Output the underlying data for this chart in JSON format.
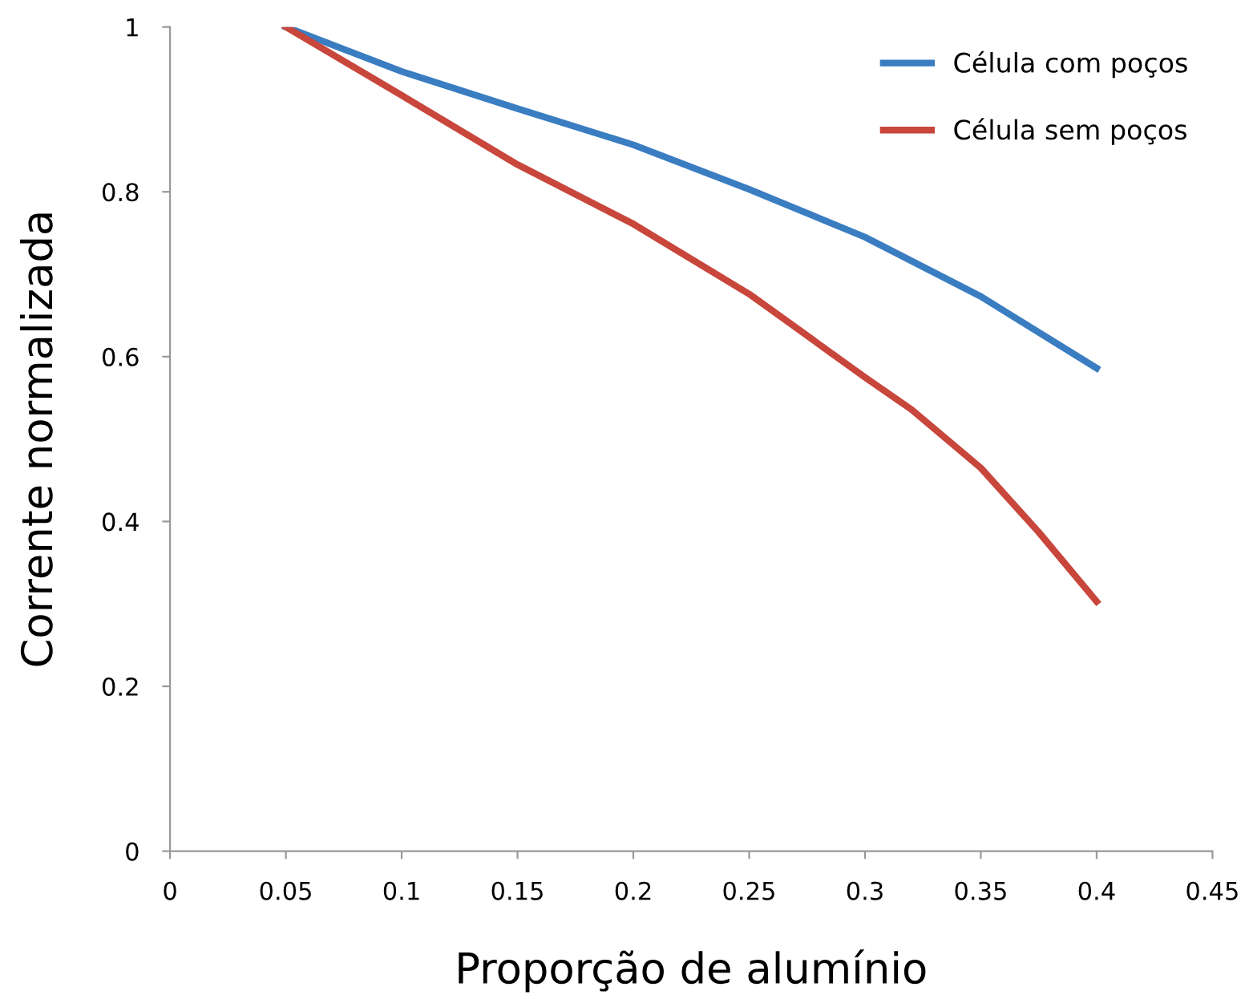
{
  "chart_data": {
    "type": "line",
    "xlabel": "Proporção de alumínio",
    "ylabel": "Corrente normalizada",
    "xlim": [
      0,
      0.45
    ],
    "xticks": [
      0,
      0.05,
      0.1,
      0.15,
      0.2,
      0.25,
      0.3,
      0.35,
      0.4,
      0.45
    ],
    "ylim": [
      0,
      1
    ],
    "yticks": [
      0,
      0.2,
      0.4,
      0.6,
      0.8,
      1
    ],
    "grid": false,
    "legend": "top right",
    "marker": "none",
    "line_style": "solid",
    "series": [
      {
        "name": "Célula com poços",
        "color": "#3a7dc1",
        "x": [
          0.05,
          0.1,
          0.15,
          0.2,
          0.25,
          0.3,
          0.35,
          0.4
        ],
        "values": [
          1,
          0.946,
          0.901,
          0.857,
          0.803,
          0.745,
          0.673,
          0.586
        ]
      },
      {
        "name": "Célula sem poços",
        "color": "#c8463b",
        "x": [
          0.05,
          0.1,
          0.15,
          0.2,
          0.25,
          0.3,
          0.32,
          0.35,
          0.375,
          0.4
        ],
        "values": [
          1,
          0.917,
          0.833,
          0.761,
          0.676,
          0.575,
          0.536,
          0.465,
          0.387,
          0.303
        ]
      }
    ]
  }
}
